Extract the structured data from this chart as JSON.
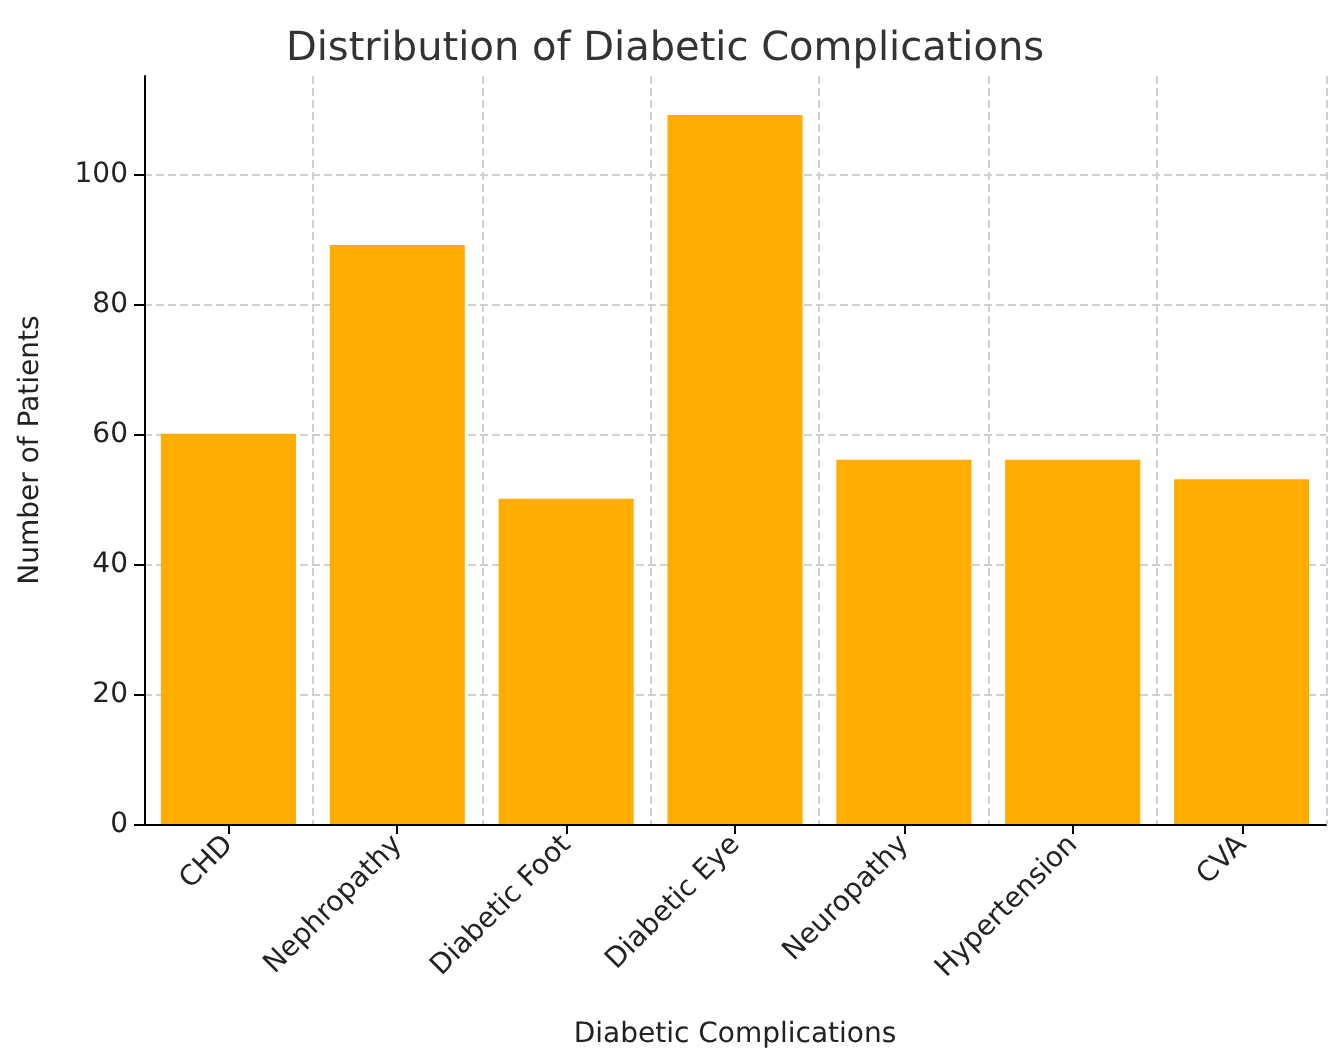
{
  "chart_data": {
    "type": "bar",
    "title": "Distribution of Diabetic Complications",
    "xlabel": "Diabetic Complications",
    "ylabel": "Number of Patients",
    "categories": [
      "CHD",
      "Nephropathy",
      "Diabetic Foot",
      "Diabetic Eye",
      "Neuropathy",
      "Hypertension",
      "CVA"
    ],
    "values": [
      60,
      89,
      50,
      109,
      56,
      56,
      53
    ],
    "color": "#ffad00",
    "ylim": [
      0,
      115
    ],
    "yticks": [
      0,
      20,
      40,
      60,
      80,
      100
    ],
    "grid": true
  }
}
